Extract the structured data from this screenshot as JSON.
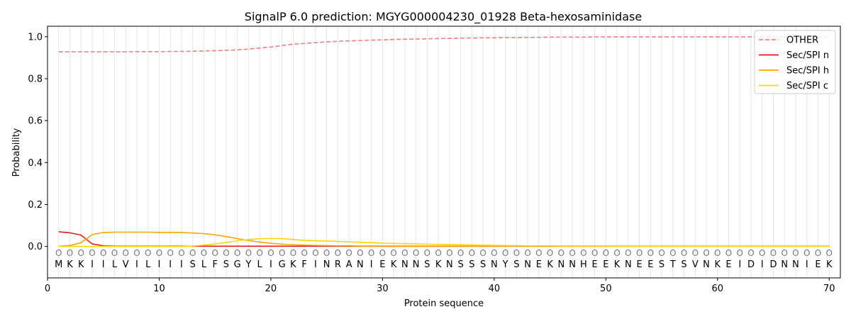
{
  "chart_data": {
    "type": "line",
    "title": "SignalP 6.0 prediction: MGYG000004230_01928 Beta-hexosaminidase",
    "xlabel": "Protein sequence",
    "ylabel": "Probability",
    "xlim": [
      0,
      71
    ],
    "ylim": [
      -0.15,
      1.05
    ],
    "xticks": [
      0,
      10,
      20,
      30,
      40,
      50,
      60,
      70
    ],
    "yticks": [
      0.0,
      0.2,
      0.4,
      0.6,
      0.8,
      1.0
    ],
    "grid": "vertical lines at each residue",
    "legend_position": "top-right",
    "sequence": [
      "M",
      "K",
      "K",
      "I",
      "I",
      "L",
      "V",
      "I",
      "L",
      "I",
      "I",
      "I",
      "S",
      "L",
      "F",
      "S",
      "G",
      "Y",
      "L",
      "I",
      "G",
      "K",
      "F",
      "I",
      "N",
      "R",
      "A",
      "N",
      "I",
      "E",
      "K",
      "N",
      "N",
      "S",
      "K",
      "N",
      "S",
      "S",
      "S",
      "N",
      "Y",
      "S",
      "N",
      "E",
      "K",
      "N",
      "N",
      "H",
      "E",
      "E",
      "K",
      "N",
      "E",
      "E",
      "S",
      "T",
      "S",
      "V",
      "N",
      "K",
      "E",
      "I",
      "D",
      "I",
      "D",
      "N",
      "N",
      "I",
      "E",
      "K"
    ],
    "residue_marker": "O",
    "series": [
      {
        "name": "OTHER",
        "color": "#f08080",
        "dash": "dashed",
        "x": [
          1,
          2,
          3,
          4,
          5,
          6,
          7,
          8,
          9,
          10,
          11,
          12,
          13,
          14,
          15,
          16,
          17,
          18,
          19,
          20,
          21,
          22,
          23,
          24,
          25,
          26,
          27,
          28,
          29,
          30,
          31,
          32,
          33,
          34,
          35,
          36,
          37,
          38,
          39,
          40,
          41,
          42,
          43,
          44,
          45,
          46,
          47,
          48,
          49,
          50,
          51,
          52,
          53,
          54,
          55,
          56,
          57,
          58,
          59,
          60,
          61,
          62,
          63,
          64,
          65,
          66,
          67,
          68,
          69,
          70
        ],
        "values": [
          0.928,
          0.928,
          0.928,
          0.928,
          0.928,
          0.928,
          0.928,
          0.929,
          0.929,
          0.929,
          0.93,
          0.93,
          0.931,
          0.932,
          0.933,
          0.935,
          0.937,
          0.941,
          0.946,
          0.951,
          0.958,
          0.964,
          0.968,
          0.972,
          0.975,
          0.978,
          0.98,
          0.982,
          0.984,
          0.985,
          0.987,
          0.988,
          0.989,
          0.99,
          0.991,
          0.992,
          0.993,
          0.994,
          0.995,
          0.995,
          0.996,
          0.996,
          0.997,
          0.997,
          0.998,
          0.998,
          0.998,
          0.998,
          0.999,
          0.999,
          0.999,
          0.999,
          0.999,
          0.999,
          0.999,
          0.999,
          0.999,
          0.999,
          0.999,
          0.999,
          0.999,
          0.999,
          0.999,
          0.999,
          0.999,
          0.999,
          0.999,
          0.999,
          0.999,
          0.999
        ]
      },
      {
        "name": "Sec/SPI n",
        "color": "#e41a1c",
        "dash": "solid",
        "x": [
          1,
          2,
          3,
          4,
          5,
          6,
          7,
          8,
          9,
          10,
          11,
          12,
          13,
          14,
          15,
          16,
          17,
          18,
          19,
          20,
          21,
          22,
          23,
          24,
          25,
          26,
          27,
          28,
          29,
          30,
          31,
          32,
          33,
          34,
          35,
          36,
          37,
          38,
          39,
          40,
          41,
          42,
          43,
          44,
          45,
          46,
          47,
          48,
          49,
          50,
          51,
          52,
          53,
          54,
          55,
          56,
          57,
          58,
          59,
          60,
          61,
          62,
          63,
          64,
          65,
          66,
          67,
          68,
          69,
          70
        ],
        "values": [
          0.07,
          0.065,
          0.054,
          0.012,
          0.003,
          0.001,
          0.001,
          0.001,
          0.001,
          0.001,
          0.001,
          0.001,
          0.001,
          0.001,
          0.001,
          0.001,
          0.001,
          0.001,
          0.001,
          0.001,
          0.001,
          0.001,
          0.001,
          0.001,
          0.001,
          0.001,
          0.001,
          0.001,
          0.001,
          0.001,
          0.001,
          0.001,
          0.001,
          0.001,
          0.001,
          0.001,
          0.001,
          0.001,
          0.001,
          0.001,
          0.001,
          0.001,
          0.001,
          0.001,
          0.001,
          0.001,
          0.001,
          0.001,
          0.001,
          0.001,
          0.001,
          0.001,
          0.001,
          0.001,
          0.001,
          0.001,
          0.001,
          0.001,
          0.001,
          0.001,
          0.001,
          0.001,
          0.001,
          0.001,
          0.001,
          0.001,
          0.001,
          0.001,
          0.001,
          0.001
        ]
      },
      {
        "name": "Sec/SPI h",
        "color": "#ffa500",
        "dash": "solid",
        "x": [
          1,
          2,
          3,
          4,
          5,
          6,
          7,
          8,
          9,
          10,
          11,
          12,
          13,
          14,
          15,
          16,
          17,
          18,
          19,
          20,
          21,
          22,
          23,
          24,
          25,
          26,
          27,
          28,
          29,
          30,
          31,
          32,
          33,
          34,
          35,
          36,
          37,
          38,
          39,
          40,
          41,
          42,
          43,
          44,
          45,
          46,
          47,
          48,
          49,
          50,
          51,
          52,
          53,
          54,
          55,
          56,
          57,
          58,
          59,
          60,
          61,
          62,
          63,
          64,
          65,
          66,
          67,
          68,
          69,
          70
        ],
        "values": [
          0.001,
          0.004,
          0.018,
          0.057,
          0.066,
          0.068,
          0.068,
          0.068,
          0.068,
          0.067,
          0.067,
          0.066,
          0.064,
          0.061,
          0.055,
          0.047,
          0.037,
          0.028,
          0.021,
          0.015,
          0.011,
          0.008,
          0.006,
          0.005,
          0.004,
          0.003,
          0.003,
          0.002,
          0.002,
          0.002,
          0.002,
          0.002,
          0.002,
          0.002,
          0.002,
          0.002,
          0.002,
          0.002,
          0.002,
          0.002,
          0.002,
          0.002,
          0.002,
          0.002,
          0.002,
          0.002,
          0.002,
          0.002,
          0.002,
          0.002,
          0.002,
          0.002,
          0.002,
          0.002,
          0.002,
          0.002,
          0.002,
          0.002,
          0.002,
          0.002,
          0.002,
          0.002,
          0.002,
          0.002,
          0.002,
          0.002,
          0.002,
          0.002,
          0.002,
          0.002
        ]
      },
      {
        "name": "Sec/SPI c",
        "color": "#ffd700",
        "dash": "solid",
        "x": [
          1,
          2,
          3,
          4,
          5,
          6,
          7,
          8,
          9,
          10,
          11,
          12,
          13,
          14,
          15,
          16,
          17,
          18,
          19,
          20,
          21,
          22,
          23,
          24,
          25,
          26,
          27,
          28,
          29,
          30,
          31,
          32,
          33,
          34,
          35,
          36,
          37,
          38,
          39,
          40,
          41,
          42,
          43,
          44,
          45,
          46,
          47,
          48,
          49,
          50,
          51,
          52,
          53,
          54,
          55,
          56,
          57,
          58,
          59,
          60,
          61,
          62,
          63,
          64,
          65,
          66,
          67,
          68,
          69,
          70
        ],
        "values": [
          0.0,
          0.0,
          0.0,
          0.0,
          0.0,
          0.0,
          0.0,
          0.0,
          0.0,
          0.0,
          0.0,
          0.0,
          0.002,
          0.006,
          0.012,
          0.019,
          0.027,
          0.033,
          0.037,
          0.038,
          0.037,
          0.033,
          0.029,
          0.027,
          0.026,
          0.024,
          0.022,
          0.02,
          0.018,
          0.016,
          0.014,
          0.013,
          0.012,
          0.011,
          0.01,
          0.009,
          0.008,
          0.007,
          0.006,
          0.005,
          0.004,
          0.004,
          0.003,
          0.003,
          0.003,
          0.002,
          0.002,
          0.002,
          0.002,
          0.002,
          0.001,
          0.001,
          0.001,
          0.001,
          0.001,
          0.001,
          0.001,
          0.001,
          0.001,
          0.001,
          0.001,
          0.001,
          0.001,
          0.001,
          0.001,
          0.001,
          0.001,
          0.001,
          0.001,
          0.001
        ]
      }
    ]
  }
}
